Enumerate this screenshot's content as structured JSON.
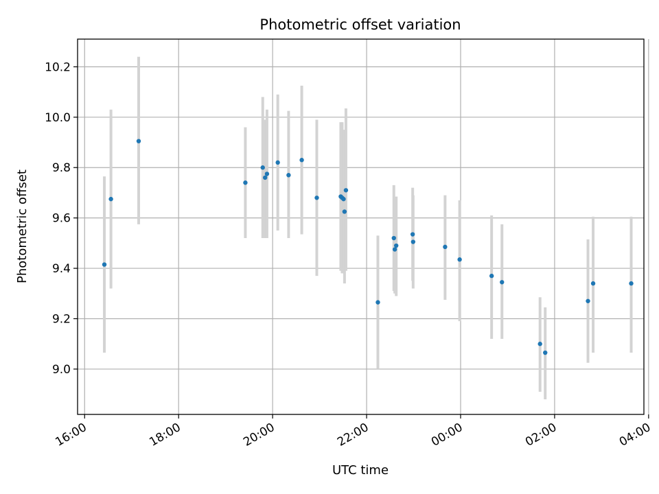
{
  "chart_data": {
    "type": "scatter",
    "title": "Photometric offset variation",
    "xlabel": "UTC time",
    "ylabel": "Photometric offset",
    "x_unit": "hours since 16:00 UTC",
    "xlim": [
      -0.15,
      11.9
    ],
    "ylim": [
      8.82,
      10.31
    ],
    "grid": true,
    "x_ticks": [
      {
        "value": 0,
        "label": "16:00"
      },
      {
        "value": 2,
        "label": "18:00"
      },
      {
        "value": 4,
        "label": "20:00"
      },
      {
        "value": 6,
        "label": "22:00"
      },
      {
        "value": 8,
        "label": "00:00"
      },
      {
        "value": 10,
        "label": "02:00"
      },
      {
        "value": 12,
        "label": "04:00"
      }
    ],
    "y_ticks": [
      {
        "value": 9.0,
        "label": "9.0"
      },
      {
        "value": 9.2,
        "label": "9.2"
      },
      {
        "value": 9.4,
        "label": "9.4"
      },
      {
        "value": 9.6,
        "label": "9.6"
      },
      {
        "value": 9.8,
        "label": "9.8"
      },
      {
        "value": 10.0,
        "label": "10.0"
      },
      {
        "value": 10.2,
        "label": "10.2"
      }
    ],
    "colors": {
      "marker": "#1f77b4",
      "errorbar": "#d3d3d3",
      "grid": "#b0b0b0"
    },
    "points": [
      {
        "x": 0.42,
        "y": 9.415,
        "lo": 9.065,
        "hi": 9.765
      },
      {
        "x": 0.56,
        "y": 9.675,
        "lo": 9.32,
        "hi": 10.03
      },
      {
        "x": 1.15,
        "y": 9.905,
        "lo": 9.575,
        "hi": 10.24
      },
      {
        "x": 3.42,
        "y": 9.74,
        "lo": 9.52,
        "hi": 9.96
      },
      {
        "x": 3.79,
        "y": 9.8,
        "lo": 9.52,
        "hi": 10.08
      },
      {
        "x": 3.84,
        "y": 9.76,
        "lo": 9.52,
        "hi": 9.99
      },
      {
        "x": 3.88,
        "y": 9.775,
        "lo": 9.52,
        "hi": 10.03
      },
      {
        "x": 4.11,
        "y": 9.82,
        "lo": 9.55,
        "hi": 10.09
      },
      {
        "x": 4.34,
        "y": 9.77,
        "lo": 9.52,
        "hi": 10.025
      },
      {
        "x": 4.62,
        "y": 9.83,
        "lo": 9.535,
        "hi": 10.125
      },
      {
        "x": 4.94,
        "y": 9.68,
        "lo": 9.37,
        "hi": 9.99
      },
      {
        "x": 5.45,
        "y": 9.685,
        "lo": 9.39,
        "hi": 9.98
      },
      {
        "x": 5.48,
        "y": 9.68,
        "lo": 9.38,
        "hi": 9.98
      },
      {
        "x": 5.51,
        "y": 9.675,
        "lo": 9.4,
        "hi": 9.95
      },
      {
        "x": 5.53,
        "y": 9.625,
        "lo": 9.34,
        "hi": 9.91
      },
      {
        "x": 5.56,
        "y": 9.71,
        "lo": 9.39,
        "hi": 10.035
      },
      {
        "x": 6.24,
        "y": 9.265,
        "lo": 9.0,
        "hi": 9.53
      },
      {
        "x": 6.58,
        "y": 9.52,
        "lo": 9.31,
        "hi": 9.73
      },
      {
        "x": 6.6,
        "y": 9.475,
        "lo": 9.3,
        "hi": 9.68
      },
      {
        "x": 6.63,
        "y": 9.49,
        "lo": 9.29,
        "hi": 9.685
      },
      {
        "x": 6.98,
        "y": 9.535,
        "lo": 9.35,
        "hi": 9.72
      },
      {
        "x": 6.99,
        "y": 9.505,
        "lo": 9.32,
        "hi": 9.69
      },
      {
        "x": 7.67,
        "y": 9.485,
        "lo": 9.275,
        "hi": 9.69
      },
      {
        "x": 7.98,
        "y": 9.435,
        "lo": 9.19,
        "hi": 9.67
      },
      {
        "x": 8.66,
        "y": 9.37,
        "lo": 9.12,
        "hi": 9.61
      },
      {
        "x": 8.88,
        "y": 9.345,
        "lo": 9.12,
        "hi": 9.575
      },
      {
        "x": 9.69,
        "y": 9.1,
        "lo": 8.91,
        "hi": 9.285
      },
      {
        "x": 9.8,
        "y": 9.065,
        "lo": 8.88,
        "hi": 9.245
      },
      {
        "x": 10.71,
        "y": 9.27,
        "lo": 9.025,
        "hi": 9.515
      },
      {
        "x": 10.82,
        "y": 9.34,
        "lo": 9.065,
        "hi": 9.605
      },
      {
        "x": 11.63,
        "y": 9.34,
        "lo": 9.065,
        "hi": 9.605
      }
    ]
  }
}
